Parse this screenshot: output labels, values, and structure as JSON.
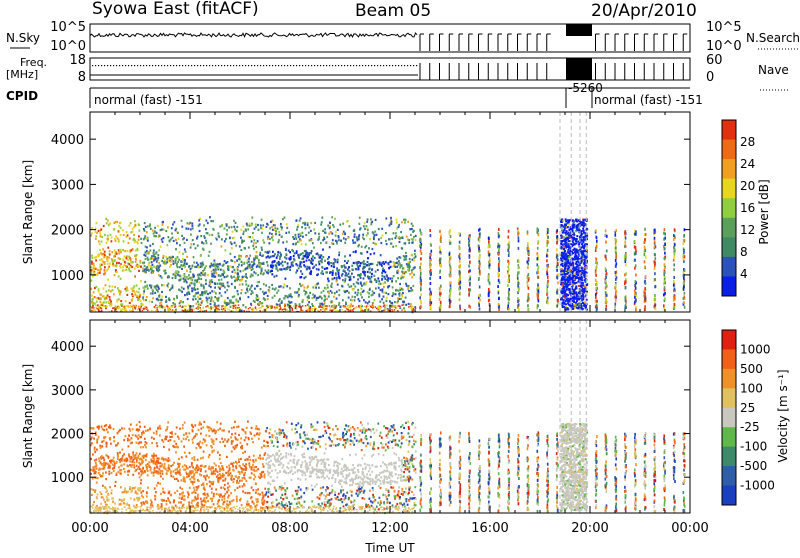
{
  "header": {
    "station": "Syowa East (fitACF)",
    "beam": "Beam 05",
    "date": "20/Apr/2010"
  },
  "strips": {
    "nsky": {
      "label": "N.Sky",
      "ticks_left": [
        "10^5",
        "10^0"
      ],
      "right_label": "N.Search",
      "ticks_right": [
        "10^5",
        "10^0"
      ]
    },
    "freq": {
      "label_line1": "Freq.",
      "label_line2": "[MHz]",
      "ticks_left": [
        "18",
        "8"
      ],
      "right_label": "Nave",
      "ticks_right": [
        "60",
        "0"
      ]
    },
    "cpid": {
      "label": "CPID",
      "segments": [
        "normal (fast) -151",
        "-5260",
        "normal (fast) -151"
      ]
    }
  },
  "chart_data": [
    {
      "type": "heatmap",
      "panel": "power",
      "xlabel": "",
      "ylabel": "Slant Range [km]",
      "x_ticks": [
        "00:00",
        "04:00",
        "08:00",
        "12:00",
        "16:00",
        "20:00",
        "00:00"
      ],
      "y_ticks": [
        4000,
        3000,
        2000,
        1000
      ],
      "ylim": [
        180,
        4600
      ],
      "xlim_hours": [
        0,
        24
      ],
      "colorbar": {
        "label": "Power [dB]",
        "ticks": [
          "28",
          "24",
          "20",
          "16",
          "12",
          "8",
          "4"
        ]
      },
      "palette": [
        "#0b1ee8",
        "#2a52b8",
        "#3f8a64",
        "#5aa05c",
        "#8fce3e",
        "#e6d61e",
        "#f0a020",
        "#ee6a14",
        "#e03010"
      ]
    },
    {
      "type": "heatmap",
      "panel": "velocity",
      "xlabel": "Time UT",
      "ylabel": "Slant Range [km]",
      "x_ticks": [
        "00:00",
        "04:00",
        "08:00",
        "12:00",
        "16:00",
        "20:00",
        "00:00"
      ],
      "y_ticks": [
        4000,
        3000,
        2000,
        1000
      ],
      "ylim": [
        180,
        4600
      ],
      "xlim_hours": [
        0,
        24
      ],
      "colorbar": {
        "label": "Velocity [m s⁻¹]",
        "ticks": [
          "1000",
          "500",
          "100",
          "25",
          "-25",
          "-100",
          "-500",
          "-1000"
        ]
      },
      "palette": [
        "#1a3fbf",
        "#2e5ea8",
        "#3c8a6a",
        "#5fb84a",
        "#c8c8c0",
        "#e0c060",
        "#f09028",
        "#f06018",
        "#e02010"
      ]
    }
  ]
}
